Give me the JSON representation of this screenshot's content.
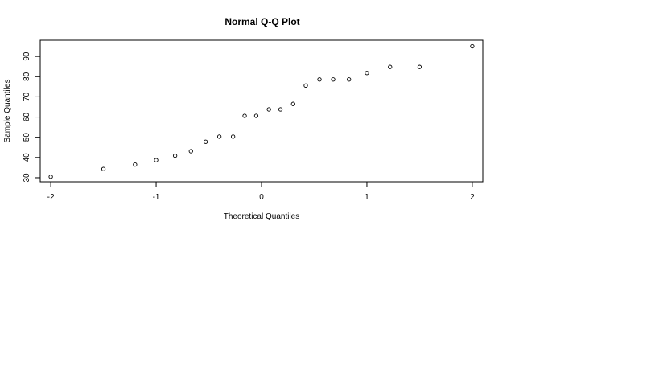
{
  "chart_data": {
    "type": "scatter",
    "title": "Normal Q-Q Plot",
    "xlabel": "Theoretical Quantiles",
    "ylabel": "Sample Quantiles",
    "xlim": [
      -2.1,
      2.1
    ],
    "ylim": [
      28,
      98
    ],
    "x_ticks": [
      -2,
      -1,
      0,
      1,
      2
    ],
    "x_tick_labels": [
      "-2",
      "-1",
      "0",
      "1",
      "2"
    ],
    "y_ticks": [
      30,
      40,
      50,
      60,
      70,
      80,
      90
    ],
    "y_tick_labels": [
      "30",
      "40",
      "50",
      "60",
      "70",
      "80",
      "90"
    ],
    "grid": false,
    "marker": "open-circle",
    "points": [
      {
        "x": -2.0,
        "y": 30.5
      },
      {
        "x": -1.5,
        "y": 34.3
      },
      {
        "x": -1.2,
        "y": 36.5
      },
      {
        "x": -1.0,
        "y": 38.7
      },
      {
        "x": -0.82,
        "y": 40.9
      },
      {
        "x": -0.67,
        "y": 43.1
      },
      {
        "x": -0.53,
        "y": 47.8
      },
      {
        "x": -0.4,
        "y": 50.3
      },
      {
        "x": -0.27,
        "y": 50.3
      },
      {
        "x": -0.16,
        "y": 60.6
      },
      {
        "x": -0.05,
        "y": 60.6
      },
      {
        "x": 0.07,
        "y": 63.8
      },
      {
        "x": 0.18,
        "y": 63.8
      },
      {
        "x": 0.3,
        "y": 66.5
      },
      {
        "x": 0.42,
        "y": 75.6
      },
      {
        "x": 0.55,
        "y": 78.6
      },
      {
        "x": 0.68,
        "y": 78.6
      },
      {
        "x": 0.83,
        "y": 78.6
      },
      {
        "x": 1.0,
        "y": 81.8
      },
      {
        "x": 1.22,
        "y": 84.8
      },
      {
        "x": 1.5,
        "y": 84.8
      },
      {
        "x": 2.0,
        "y": 95.0
      }
    ]
  }
}
